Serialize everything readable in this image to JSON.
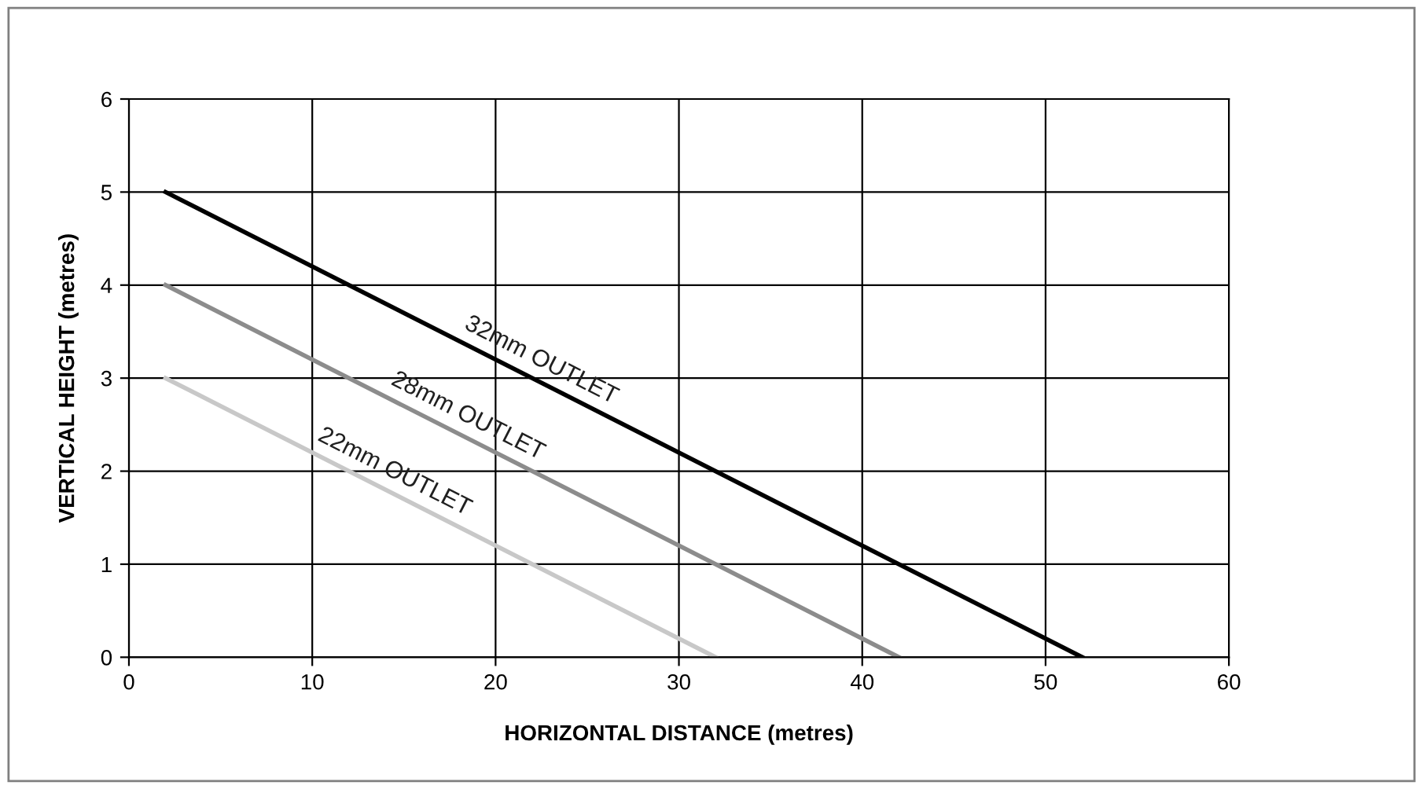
{
  "chart_data": {
    "type": "line",
    "xlabel": "HORIZONTAL DISTANCE (metres)",
    "ylabel": "VERTICAL HEIGHT (metres)",
    "xlim": [
      0,
      60
    ],
    "xticks": [
      0,
      10,
      20,
      30,
      40,
      50,
      60
    ],
    "ylim": [
      0,
      6
    ],
    "yticks": [
      0,
      1,
      2,
      3,
      4,
      5,
      6
    ],
    "grid": true,
    "series": [
      {
        "name": "32mm OUTLET",
        "color": "#000000",
        "x": [
          2,
          52
        ],
        "values": [
          5,
          0
        ]
      },
      {
        "name": "28mm OUTLET",
        "color": "#8c8c8c",
        "x": [
          2,
          42
        ],
        "values": [
          4,
          0
        ]
      },
      {
        "name": "22mm OUTLET",
        "color": "#c8c8c8",
        "x": [
          2,
          32
        ],
        "values": [
          3,
          0
        ]
      }
    ]
  }
}
